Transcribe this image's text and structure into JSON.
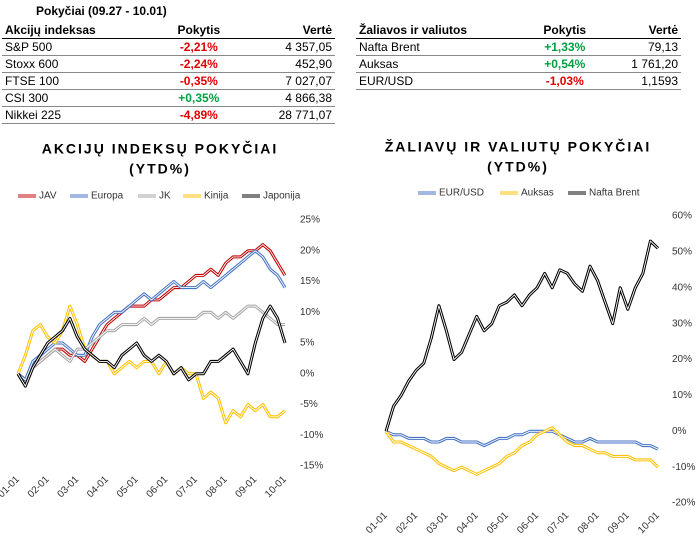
{
  "header": {
    "title": "Pokyčiai (09.27 - 10.01)"
  },
  "tables": [
    {
      "columns": [
        "Akcijų indeksas",
        "Pokytis",
        "Vertė"
      ],
      "rows": [
        [
          "S&P 500",
          "-2,21%",
          "4 357,05"
        ],
        [
          "Stoxx 600",
          "-2,24%",
          "452,90"
        ],
        [
          "FTSE 100",
          "-0,35%",
          "7 027,07"
        ],
        [
          "CSI 300",
          "+0,35%",
          "4 866,38"
        ],
        [
          "Nikkei 225",
          "-4,89%",
          "28 771,07"
        ]
      ]
    },
    {
      "columns": [
        "Žaliavos ir valiutos",
        "Pokytis",
        "Vertė"
      ],
      "rows": [
        [
          "Nafta Brent",
          "+1,33%",
          "79,13"
        ],
        [
          "Auksas",
          "+0,54%",
          "1 761,20"
        ],
        [
          "EUR/USD",
          "-1,03%",
          "1,1593"
        ]
      ]
    }
  ],
  "chart_data": [
    {
      "type": "line",
      "title": "AKCIJŲ INDEKSŲ POKYČIAI",
      "subtitle": "(YTD%)",
      "categories": [
        "01-01",
        null,
        null,
        null,
        "02-01",
        null,
        null,
        null,
        "03-01",
        null,
        null,
        null,
        "04-01",
        null,
        null,
        null,
        "05-01",
        null,
        null,
        null,
        "06-01",
        null,
        null,
        null,
        "07-01",
        null,
        null,
        null,
        "08-01",
        null,
        null,
        null,
        "09-01",
        null,
        null,
        null,
        "10-01"
      ],
      "series": [
        {
          "name": "JAV",
          "color": "#c00000",
          "values": [
            0,
            -1,
            1,
            2,
            3,
            4,
            4,
            3,
            3,
            2,
            4,
            6,
            8,
            9,
            10,
            11,
            11,
            11,
            12,
            12,
            13,
            14,
            14,
            15,
            16,
            16,
            17,
            16,
            18,
            19,
            19,
            20,
            20,
            21,
            20,
            18,
            16
          ]
        },
        {
          "name": "Europa",
          "color": "#4472c4",
          "values": [
            0,
            -1,
            2,
            3,
            4,
            5,
            5,
            4,
            3,
            3,
            6,
            8,
            9,
            10,
            10,
            11,
            12,
            13,
            12,
            13,
            14,
            15,
            14,
            14,
            14,
            15,
            14,
            15,
            16,
            17,
            18,
            19,
            20,
            19,
            17,
            16,
            14
          ]
        },
        {
          "name": "JK",
          "color": "#a5a5a5",
          "values": [
            0,
            -2,
            1,
            2,
            3,
            4,
            3,
            2,
            4,
            4,
            5,
            6,
            7,
            7,
            8,
            8,
            8,
            9,
            8,
            9,
            9,
            9,
            9,
            9,
            9,
            10,
            10,
            9,
            10,
            9,
            10,
            11,
            11,
            10,
            9,
            8,
            8
          ]
        },
        {
          "name": "Kinija",
          "color": "#ffc000",
          "values": [
            0,
            3,
            7,
            8,
            6,
            5,
            7,
            11,
            8,
            4,
            3,
            2,
            2,
            0,
            1,
            2,
            1,
            2,
            2,
            0,
            2,
            0,
            1,
            0,
            0,
            -4,
            -3,
            -4,
            -8,
            -6,
            -7,
            -5,
            -6,
            -5,
            -7,
            -7,
            -6
          ]
        },
        {
          "name": "Japonija",
          "color": "#000000",
          "values": [
            0,
            -2,
            1,
            3,
            5,
            6,
            7,
            9,
            6,
            4,
            3,
            2,
            2,
            1,
            3,
            4,
            5,
            3,
            2,
            3,
            2,
            0,
            1,
            -1,
            0,
            0,
            2,
            2,
            3,
            4,
            2,
            0,
            5,
            9,
            11,
            9,
            5
          ]
        }
      ],
      "ylim": [
        -15,
        25
      ],
      "yticks": [
        {
          "value": -15,
          "label": "-15%"
        },
        {
          "value": -10,
          "label": "-10%"
        },
        {
          "value": -5,
          "label": "-5%"
        },
        {
          "value": 0,
          "label": "0%"
        },
        {
          "value": 5,
          "label": "5%"
        },
        {
          "value": 10,
          "label": "10%"
        },
        {
          "value": 15,
          "label": "15%"
        },
        {
          "value": 20,
          "label": "20%"
        },
        {
          "value": 25,
          "label": "25%"
        }
      ],
      "legend": "top",
      "grid": false
    },
    {
      "type": "line",
      "title": "ŽALIAVŲ IR VALIUTŲ POKYČIAI",
      "subtitle": "(YTD%)",
      "categories": [
        "01-01",
        null,
        null,
        null,
        "02-01",
        null,
        null,
        null,
        "03-01",
        null,
        null,
        null,
        "04-01",
        null,
        null,
        null,
        "05-01",
        null,
        null,
        null,
        "06-01",
        null,
        null,
        null,
        "07-01",
        null,
        null,
        null,
        "08-01",
        null,
        null,
        null,
        "09-01",
        null,
        null,
        null,
        "10-01"
      ],
      "series": [
        {
          "name": "EUR/USD",
          "color": "#4472c4",
          "values": [
            0,
            -1,
            -1,
            -2,
            -2,
            -2,
            -3,
            -3,
            -2,
            -2,
            -3,
            -3,
            -3,
            -4,
            -3,
            -2,
            -2,
            -1,
            -1,
            0,
            0,
            0,
            0,
            -1,
            -2,
            -3,
            -3,
            -2,
            -3,
            -3,
            -3,
            -3,
            -3,
            -3,
            -4,
            -4,
            -5
          ]
        },
        {
          "name": "Auksas",
          "color": "#ffc000",
          "values": [
            0,
            -3,
            -3,
            -4,
            -5,
            -6,
            -7,
            -9,
            -10,
            -11,
            -10,
            -11,
            -12,
            -11,
            -10,
            -9,
            -7,
            -6,
            -4,
            -3,
            -1,
            0,
            1,
            -1,
            -3,
            -4,
            -4,
            -5,
            -6,
            -6,
            -7,
            -7,
            -7,
            -8,
            -8,
            -8,
            -10
          ]
        },
        {
          "name": "Nafta Brent",
          "color": "#000000",
          "values": [
            0,
            7,
            10,
            14,
            17,
            19,
            26,
            35,
            28,
            20,
            22,
            27,
            32,
            28,
            30,
            35,
            36,
            38,
            35,
            38,
            40,
            44,
            40,
            45,
            44,
            41,
            39,
            46,
            42,
            36,
            30,
            40,
            34,
            40,
            44,
            53,
            51
          ]
        }
      ],
      "ylim": [
        -20,
        60
      ],
      "yticks": [
        {
          "value": -20,
          "label": "-20%"
        },
        {
          "value": -10,
          "label": "-10%"
        },
        {
          "value": 0,
          "label": "0%"
        },
        {
          "value": 10,
          "label": "10%"
        },
        {
          "value": 20,
          "label": "20%"
        },
        {
          "value": 30,
          "label": "30%"
        },
        {
          "value": 40,
          "label": "40%"
        },
        {
          "value": 50,
          "label": "50%"
        },
        {
          "value": 60,
          "label": "60%"
        }
      ],
      "legend": "top",
      "grid": false
    }
  ]
}
